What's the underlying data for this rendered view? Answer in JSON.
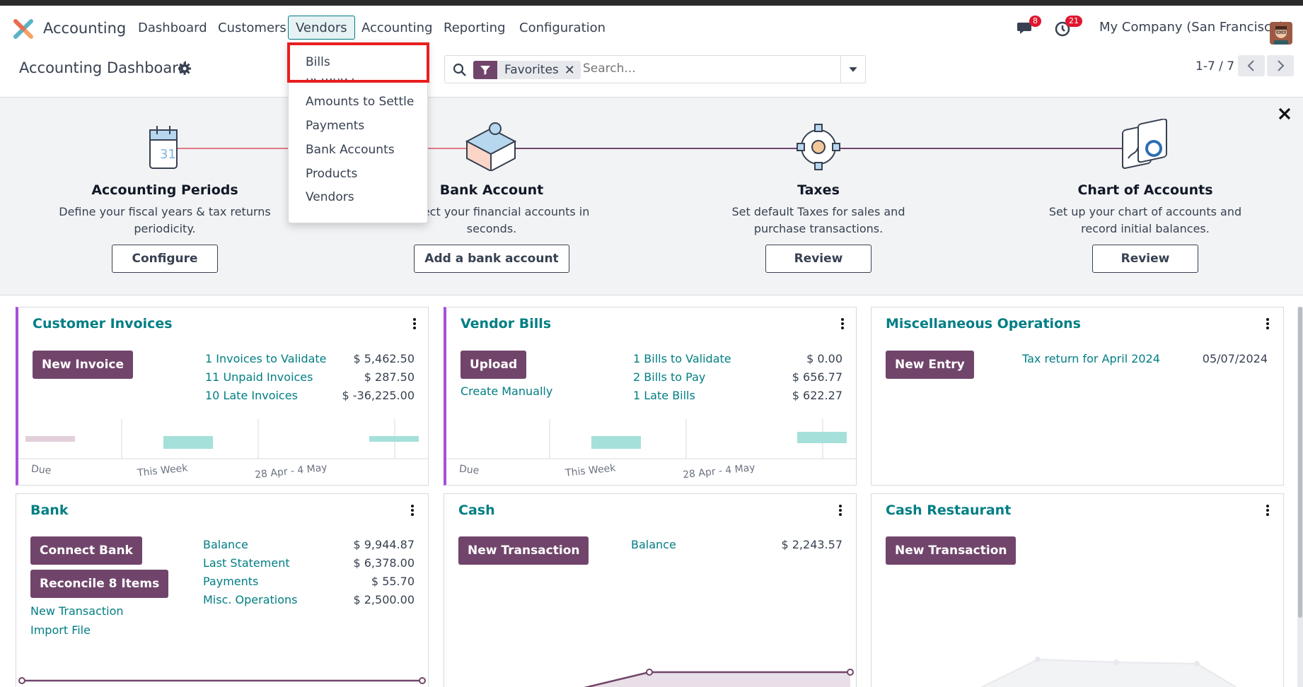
{
  "navbar": {
    "app_name": "Accounting",
    "menus": [
      "Dashboard",
      "Customers",
      "Vendors",
      "Accounting",
      "Reporting",
      "Configuration"
    ],
    "active_menu": "Vendors",
    "messages_count": "8",
    "activities_count": "21",
    "company": "My Company (San Francisco)"
  },
  "control": {
    "title": "Accounting Dashboard",
    "facet_label": "Favorites",
    "search_placeholder": "Search...",
    "pager": "1-7 / 7"
  },
  "vendors_menu": {
    "items": [
      "Bills",
      "Refunds",
      "Amounts to Settle",
      "Payments",
      "Bank Accounts",
      "Products",
      "Vendors"
    ]
  },
  "onboarding": {
    "steps": [
      {
        "title": "Accounting Periods",
        "desc": "Define your fiscal years & tax returns periodicity.",
        "button": "Configure"
      },
      {
        "title": "Bank Account",
        "desc": "Connect your financial accounts in seconds.",
        "button": "Add a bank account"
      },
      {
        "title": "Taxes",
        "desc": "Set default Taxes for sales and purchase transactions.",
        "button": "Review"
      },
      {
        "title": "Chart of Accounts",
        "desc": "Set up your chart of accounts and record initial balances.",
        "button": "Review"
      }
    ]
  },
  "journals": {
    "customer_invoices": {
      "title": "Customer Invoices",
      "button": "New Invoice",
      "rows": [
        {
          "label": "1 Invoices to Validate",
          "amount": "$ 5,462.50"
        },
        {
          "label": "11 Unpaid Invoices",
          "amount": "$ 287.50"
        },
        {
          "label": "10 Late Invoices",
          "amount": "$ -36,225.00"
        }
      ],
      "axis": [
        "Due",
        "This Week",
        "28 Apr - 4 May"
      ]
    },
    "vendor_bills": {
      "title": "Vendor Bills",
      "button": "Upload",
      "secondary_link": "Create Manually",
      "rows": [
        {
          "label": "1 Bills to Validate",
          "amount": "$ 0.00"
        },
        {
          "label": "2 Bills to Pay",
          "amount": "$ 656.77"
        },
        {
          "label": "1 Late Bills",
          "amount": "$ 622.27"
        }
      ],
      "axis": [
        "Due",
        "This Week",
        "28 Apr - 4 May"
      ]
    },
    "misc": {
      "title": "Miscellaneous Operations",
      "button": "New Entry",
      "entry_label": "Tax return for April 2024",
      "entry_date": "05/07/2024"
    },
    "bank": {
      "title": "Bank",
      "buttons": [
        "Connect Bank",
        "Reconcile 8 Items"
      ],
      "links": [
        "New Transaction",
        "Import File"
      ],
      "rows": [
        {
          "label": "Balance",
          "amount": "$ 9,944.87"
        },
        {
          "label": "Last Statement",
          "amount": "$ 6,378.00"
        },
        {
          "label": "Payments",
          "amount": "$ 55.70"
        },
        {
          "label": "Misc. Operations",
          "amount": "$ 2,500.00"
        }
      ]
    },
    "cash": {
      "title": "Cash",
      "button": "New Transaction",
      "rows": [
        {
          "label": "Balance",
          "amount": "$ 2,243.57"
        }
      ]
    },
    "cash_restaurant": {
      "title": "Cash Restaurant",
      "button": "New Transaction"
    }
  },
  "colors": {
    "brand": "#71456b",
    "accent": "#017e84",
    "highlight": "#e81f1f"
  }
}
